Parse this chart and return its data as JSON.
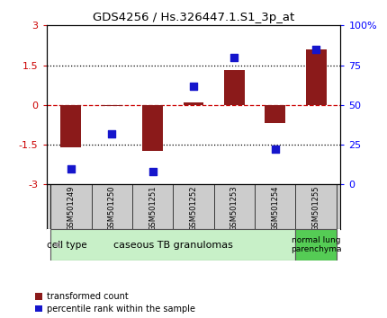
{
  "title": "GDS4256 / Hs.326447.1.S1_3p_at",
  "samples": [
    "GSM501249",
    "GSM501250",
    "GSM501251",
    "GSM501252",
    "GSM501253",
    "GSM501254",
    "GSM501255"
  ],
  "transformed_count": [
    -1.6,
    -0.05,
    -1.75,
    0.1,
    1.3,
    -0.7,
    2.1
  ],
  "percentile_rank": [
    10,
    32,
    8,
    62,
    80,
    22,
    85
  ],
  "ylim_left": [
    -3,
    3
  ],
  "ylim_right": [
    0,
    100
  ],
  "yticks_left": [
    -3,
    -1.5,
    0,
    1.5,
    3
  ],
  "yticks_right": [
    0,
    25,
    50,
    75,
    100
  ],
  "ytick_labels_left": [
    "-3",
    "-1.5",
    "0",
    "1.5",
    "3"
  ],
  "ytick_labels_right": [
    "0",
    "25",
    "50",
    "75",
    "100%"
  ],
  "bar_color": "#8B1A1A",
  "dot_color": "#1515cc",
  "bar_width": 0.5,
  "dot_size": 40,
  "zero_line_color": "#cc0000",
  "dotted_line_color": "black",
  "group0_color": "#c8f0c8",
  "group1_color": "#55cc55",
  "xtick_bg_color": "#cccccc",
  "cell_type_label": "cell type",
  "group0_label": "caseous TB granulomas",
  "group1_label": "normal lung\nparenchyma",
  "group0_samples": 6,
  "group1_samples": 1,
  "legend_red_label": "transformed count",
  "legend_blue_label": "percentile rank within the sample",
  "background_color": "#ffffff"
}
